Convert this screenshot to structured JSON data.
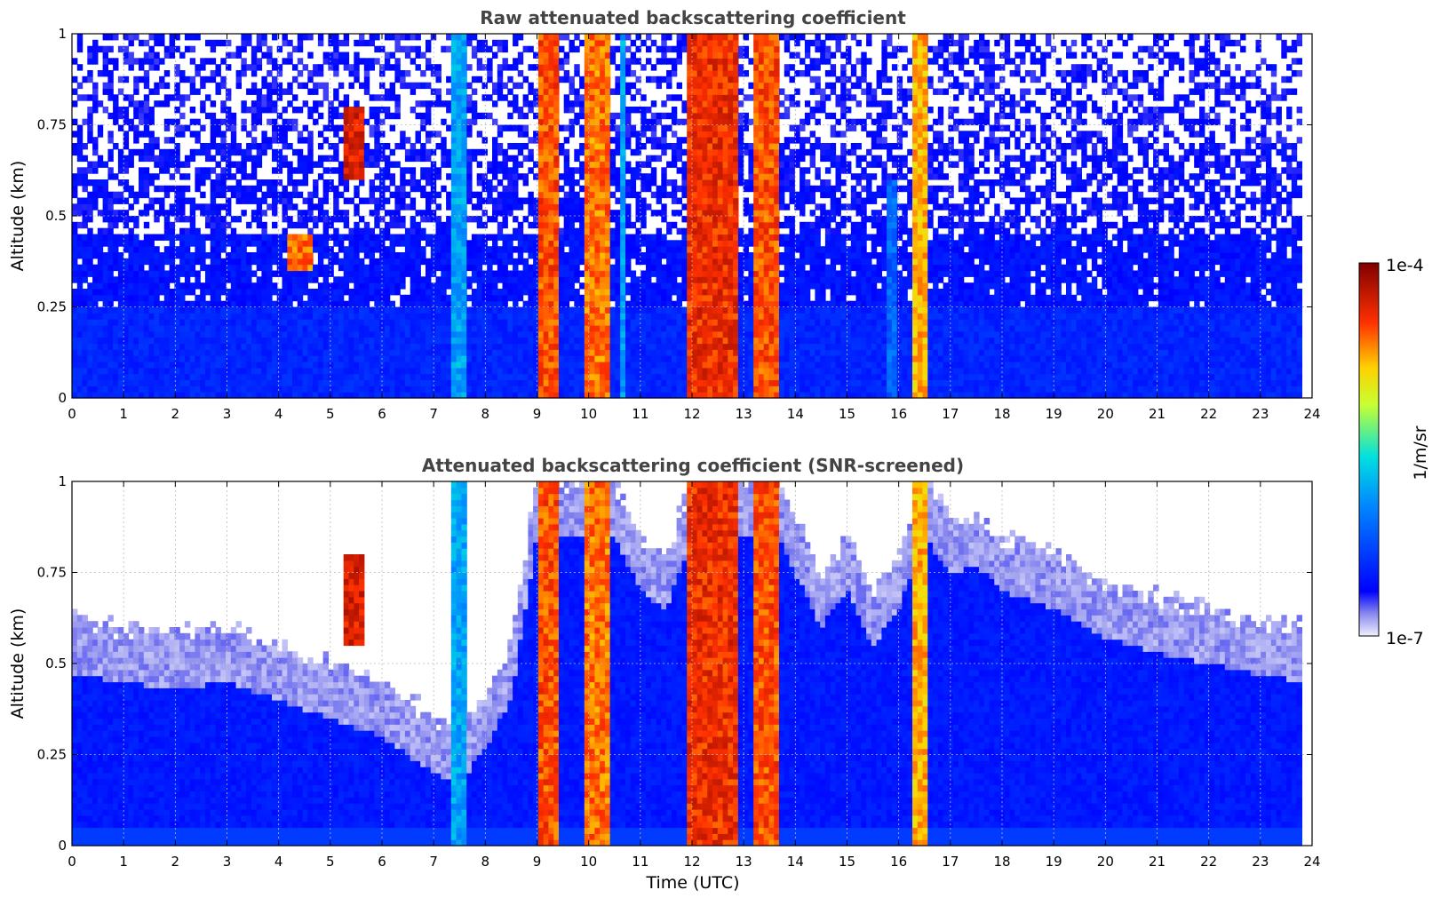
{
  "chart_data": [
    {
      "type": "heatmap",
      "title": "Raw attenuated backscattering coefficient",
      "xlabel": "",
      "ylabel": "Altitude (km)",
      "xlim": [
        0,
        24
      ],
      "ylim": [
        0,
        1
      ],
      "x_ticks": [
        "0",
        "1",
        "2",
        "3",
        "4",
        "5",
        "6",
        "7",
        "8",
        "9",
        "10",
        "11",
        "12",
        "13",
        "14",
        "15",
        "16",
        "17",
        "18",
        "19",
        "20",
        "21",
        "22",
        "23",
        "24"
      ],
      "y_ticks": [
        "0",
        "0.25",
        "0.5",
        "0.75",
        "1"
      ],
      "grid": true,
      "data_extent_x": [
        0,
        23.8
      ],
      "layers": [
        {
          "from": 0.0,
          "to": 0.25,
          "level": 0.18,
          "coverage": 1.0
        },
        {
          "from": 0.25,
          "to": 0.45,
          "level": 0.15,
          "coverage": 0.9
        },
        {
          "from": 0.45,
          "to": 0.7,
          "level": 0.13,
          "coverage": 0.6
        },
        {
          "from": 0.7,
          "to": 1.0,
          "level": 0.12,
          "coverage": 0.45
        }
      ],
      "features": [
        {
          "kind": "column",
          "t0": 7.3,
          "t1": 7.6,
          "z0": 0,
          "z1": 1,
          "level": 0.45
        },
        {
          "kind": "column",
          "t0": 9.05,
          "t1": 9.45,
          "z0": 0,
          "z1": 1,
          "level": 0.88
        },
        {
          "kind": "column",
          "t0": 9.95,
          "t1": 10.4,
          "z0": 0,
          "z1": 1,
          "level": 0.85
        },
        {
          "kind": "column",
          "t0": 10.6,
          "t1": 10.75,
          "z0": 0,
          "z1": 1,
          "level": 0.45
        },
        {
          "kind": "column",
          "t0": 11.9,
          "t1": 12.9,
          "z0": 0,
          "z1": 1,
          "level": 0.92
        },
        {
          "kind": "column",
          "t0": 13.15,
          "t1": 13.65,
          "z0": 0,
          "z1": 1,
          "level": 0.88
        },
        {
          "kind": "column",
          "t0": 16.3,
          "t1": 16.55,
          "z0": 0,
          "z1": 1,
          "level": 0.8
        },
        {
          "kind": "column",
          "t0": 15.8,
          "t1": 16.0,
          "z0": 0,
          "z1": 0.6,
          "level": 0.35
        },
        {
          "kind": "blob",
          "t0": 5.3,
          "t1": 5.7,
          "z0": 0.6,
          "z1": 0.8,
          "level": 0.95
        },
        {
          "kind": "blob",
          "t0": 4.2,
          "t1": 4.7,
          "z0": 0.35,
          "z1": 0.45,
          "level": 0.85
        }
      ]
    },
    {
      "type": "heatmap",
      "title": "Attenuated backscattering coefficient (SNR-screened)",
      "xlabel": "Time (UTC)",
      "ylabel": "Altitude (km)",
      "xlim": [
        0,
        24
      ],
      "ylim": [
        0,
        1
      ],
      "x_ticks": [
        "0",
        "1",
        "2",
        "3",
        "4",
        "5",
        "6",
        "7",
        "8",
        "9",
        "10",
        "11",
        "12",
        "13",
        "14",
        "15",
        "16",
        "17",
        "18",
        "19",
        "20",
        "21",
        "22",
        "23",
        "24"
      ],
      "y_ticks": [
        "0",
        "0.25",
        "0.5",
        "0.75",
        "1"
      ],
      "grid": true,
      "data_extent_x": [
        0,
        23.8
      ],
      "screen_top_km": [
        [
          0,
          0.62
        ],
        [
          1,
          0.6
        ],
        [
          2,
          0.58
        ],
        [
          3,
          0.6
        ],
        [
          4,
          0.55
        ],
        [
          5,
          0.5
        ],
        [
          6,
          0.45
        ],
        [
          7,
          0.35
        ],
        [
          7.5,
          0.32
        ],
        [
          8,
          0.42
        ],
        [
          8.5,
          0.55
        ],
        [
          9,
          1.0
        ],
        [
          10.5,
          1.0
        ],
        [
          11,
          0.85
        ],
        [
          11.5,
          0.8
        ],
        [
          12,
          1.0
        ],
        [
          13.7,
          1.0
        ],
        [
          14,
          0.9
        ],
        [
          14.5,
          0.75
        ],
        [
          15,
          0.85
        ],
        [
          15.5,
          0.7
        ],
        [
          16,
          0.8
        ],
        [
          16.5,
          1.0
        ],
        [
          17,
          0.9
        ],
        [
          17.5,
          0.92
        ],
        [
          18,
          0.85
        ],
        [
          19,
          0.8
        ],
        [
          20,
          0.72
        ],
        [
          21,
          0.68
        ],
        [
          22,
          0.65
        ],
        [
          23,
          0.62
        ],
        [
          23.8,
          0.6
        ]
      ],
      "features": [
        {
          "kind": "column",
          "t0": 7.3,
          "t1": 7.6,
          "z0": 0,
          "z1": 1,
          "level": 0.45
        },
        {
          "kind": "column",
          "t0": 9.05,
          "t1": 9.45,
          "z0": 0,
          "z1": 1,
          "level": 0.88
        },
        {
          "kind": "column",
          "t0": 9.95,
          "t1": 10.4,
          "z0": 0,
          "z1": 1,
          "level": 0.85
        },
        {
          "kind": "column",
          "t0": 11.9,
          "t1": 12.9,
          "z0": 0,
          "z1": 1,
          "level": 0.92
        },
        {
          "kind": "column",
          "t0": 13.15,
          "t1": 13.65,
          "z0": 0,
          "z1": 1,
          "level": 0.88
        },
        {
          "kind": "column",
          "t0": 16.3,
          "t1": 16.55,
          "z0": 0,
          "z1": 1,
          "level": 0.8
        },
        {
          "kind": "blob",
          "t0": 5.3,
          "t1": 5.7,
          "z0": 0.55,
          "z1": 0.8,
          "level": 0.95
        }
      ]
    }
  ],
  "colorbar": {
    "label": "1/m/sr",
    "max_label": "1e-4",
    "min_label": "1e-7",
    "scale": "log"
  }
}
